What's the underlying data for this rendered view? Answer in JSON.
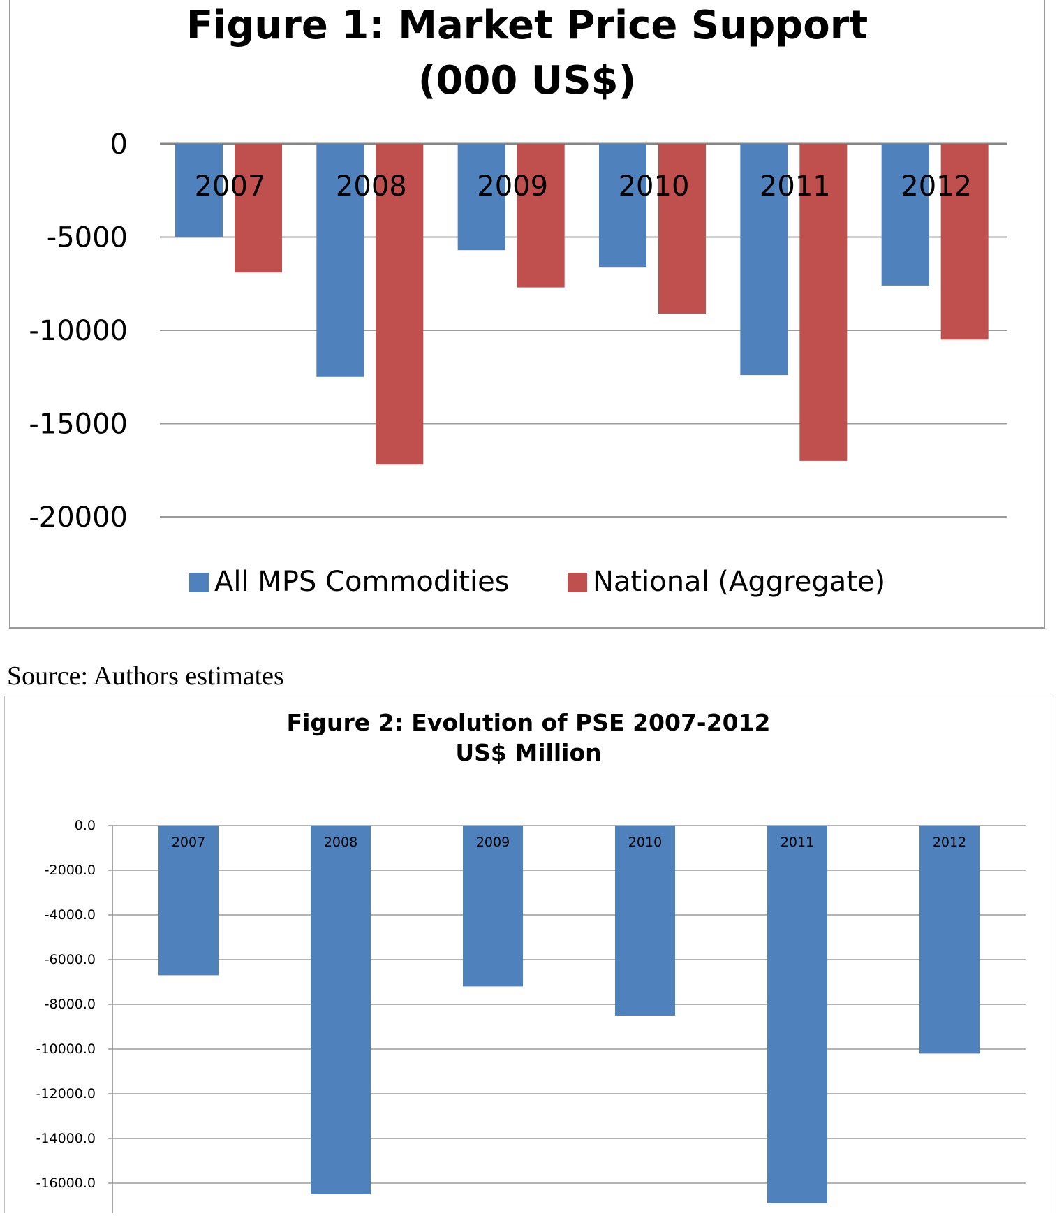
{
  "chart_data": [
    {
      "type": "bar",
      "title": "Figure 1: Market Price Support",
      "subtitle": "(000 US$)",
      "categories": [
        "2007",
        "2008",
        "2009",
        "2010",
        "2011",
        "2012"
      ],
      "series": [
        {
          "name": "All MPS Commodities",
          "color": "#4f81bd",
          "values": [
            -5000,
            -12500,
            -5700,
            -6600,
            -12400,
            -7600
          ]
        },
        {
          "name": "National (Aggregate)",
          "color": "#c0504d",
          "values": [
            -6900,
            -17200,
            -7700,
            -9100,
            -17000,
            -10500
          ]
        }
      ],
      "ylim": [
        -20000,
        0
      ],
      "yticks": [
        0,
        -5000,
        -10000,
        -15000,
        -20000
      ],
      "ytick_labels": [
        "0",
        "-5000",
        "-10000",
        "-15000",
        "-20000"
      ],
      "grid": true,
      "legend": "bottom"
    },
    {
      "type": "bar",
      "title": "Figure 2: Evolution of PSE 2007-2012",
      "subtitle": "US$ Million",
      "categories": [
        "2007",
        "2008",
        "2009",
        "2010",
        "2011",
        "2012"
      ],
      "series": [
        {
          "color": "#4f81bd",
          "values": [
            -6700,
            -16500,
            -7200,
            -8500,
            -16900,
            -10200
          ]
        }
      ],
      "ylim": [
        -17000,
        0
      ],
      "yticks": [
        0,
        -2000,
        -4000,
        -6000,
        -8000,
        -10000,
        -12000,
        -14000,
        -16000
      ],
      "ytick_labels": [
        "0.0",
        "-2000.0",
        "-4000.0",
        "-6000.0",
        "-8000.0",
        "-10000.0",
        "-12000.0",
        "-14000.0",
        "-16000.0"
      ],
      "grid": true
    }
  ],
  "source_note": "Source: Authors estimates"
}
